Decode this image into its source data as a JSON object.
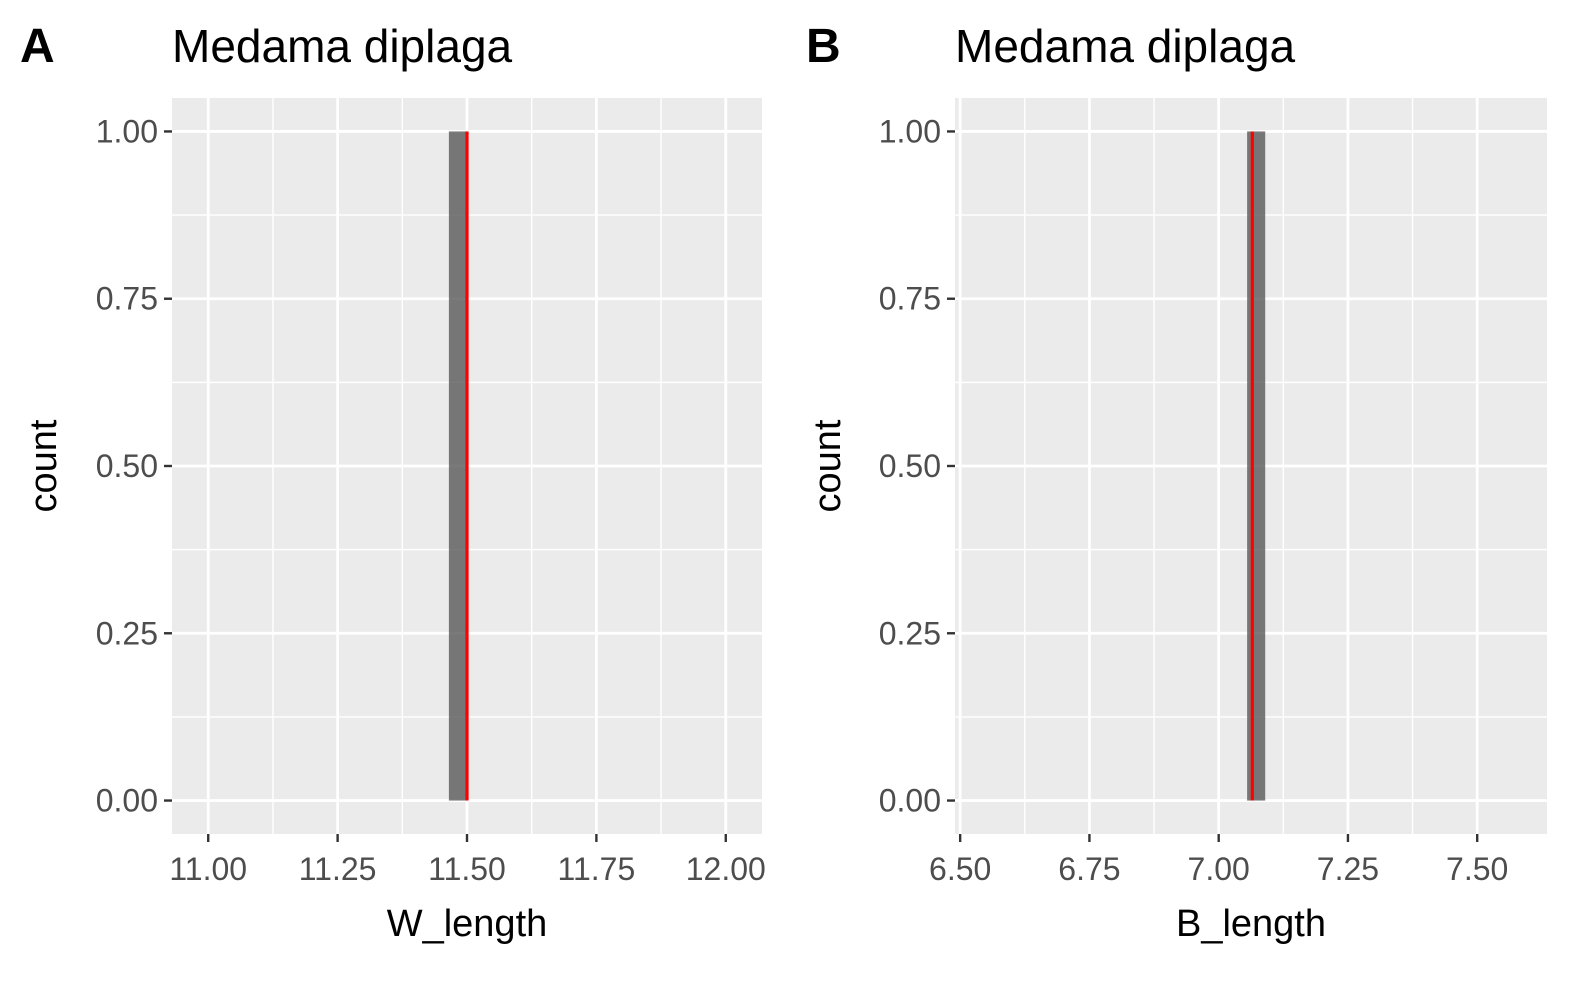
{
  "chart_data": [
    {
      "panel_tag": "A",
      "type": "bar",
      "title": "Medama diplaga",
      "xlabel": "W_length",
      "ylabel": "count",
      "xlim": [
        10.93,
        12.07
      ],
      "ylim": [
        -0.05,
        1.05
      ],
      "x_ticks": [
        11.0,
        11.25,
        11.5,
        11.75,
        12.0
      ],
      "x_tick_labels": [
        "11.00",
        "11.25",
        "11.50",
        "11.75",
        "12.00"
      ],
      "y_ticks": [
        0,
        0.25,
        0.5,
        0.75,
        1.0
      ],
      "y_tick_labels": [
        "0.00",
        "0.25",
        "0.50",
        "0.75",
        "1.00"
      ],
      "bins": [
        {
          "xmin": 11.465,
          "xmax": 11.5,
          "count": 1
        }
      ],
      "vline": {
        "x": 11.5,
        "color": "#ff0000"
      },
      "colors": {
        "panel": "#ebebeb",
        "grid": "#ffffff",
        "bar": "#595959",
        "vline": "#ff0000"
      }
    },
    {
      "panel_tag": "B",
      "type": "bar",
      "title": "Medama diplaga",
      "xlabel": "B_length",
      "ylabel": "count",
      "xlim": [
        6.49,
        7.635
      ],
      "ylim": [
        -0.05,
        1.05
      ],
      "x_ticks": [
        6.5,
        6.75,
        7.0,
        7.25,
        7.5
      ],
      "x_tick_labels": [
        "6.50",
        "6.75",
        "7.00",
        "7.25",
        "7.50"
      ],
      "y_ticks": [
        0,
        0.25,
        0.5,
        0.75,
        1.0
      ],
      "y_tick_labels": [
        "0.00",
        "0.25",
        "0.50",
        "0.75",
        "1.00"
      ],
      "bins": [
        {
          "xmin": 7.055,
          "xmax": 7.09,
          "count": 1
        }
      ],
      "vline": {
        "x": 7.065,
        "color": "#ff0000"
      },
      "colors": {
        "panel": "#ebebeb",
        "grid": "#ffffff",
        "bar": "#595959",
        "vline": "#ff0000"
      }
    }
  ]
}
